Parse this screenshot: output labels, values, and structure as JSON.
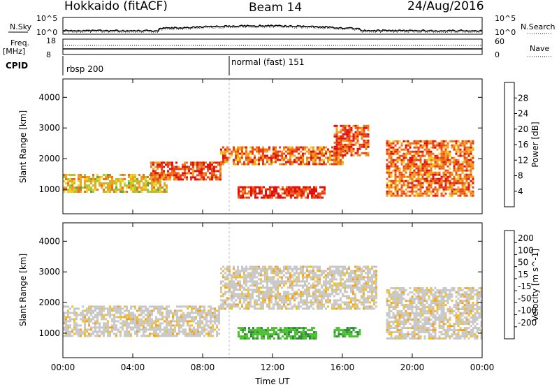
{
  "header": {
    "radar": "Hokkaido (fitACF)",
    "beam": "Beam 14",
    "date": "24/Aug/2016"
  },
  "top_panels": {
    "nsky_label": "N.Sky",
    "nsky_ticks": [
      "10^5",
      "10^0"
    ],
    "nsearch_label": "N.Search",
    "nsearch_ticks": [
      "10^5",
      "10^0"
    ],
    "freq_label": "Freq.",
    "freq_unit": "[MHz]",
    "freq_ticks": [
      "18",
      "8"
    ],
    "nave_label": "Nave",
    "nave_ticks": [
      "60",
      "0"
    ],
    "cpid_label": "CPID",
    "cpid_segments": [
      {
        "name": "rbsp 200",
        "start_hour": 0
      },
      {
        "name": "normal (fast) 151",
        "start_hour": 9.4
      }
    ]
  },
  "chart_data": [
    {
      "type": "heatmap",
      "parameter": "Power",
      "ylabel": "Slant Range [km]",
      "xlabel": "",
      "ylim": [
        200,
        4600
      ],
      "yticks": [
        "1000",
        "2000",
        "3000",
        "4000"
      ],
      "colorbar": {
        "label": "Power [dB]",
        "ticks": [
          "4",
          "8",
          "12",
          "16",
          "20",
          "24",
          "28"
        ],
        "range": [
          0,
          32
        ],
        "colors": [
          "#0018ff",
          "#1840b8",
          "#2e6fa0",
          "#3c8a64",
          "#4caa4c",
          "#9ccf36",
          "#f0d020",
          "#f5a020",
          "#f07018",
          "#e84015",
          "#e01010"
        ]
      },
      "echo_regions": [
        {
          "t0": 0.0,
          "t1": 6.0,
          "r0": 900,
          "r1": 1500,
          "level": 20
        },
        {
          "t0": 5.0,
          "t1": 9.0,
          "r0": 1300,
          "r1": 1900,
          "level": 28
        },
        {
          "t0": 9.0,
          "t1": 16.0,
          "r0": 1800,
          "r1": 2400,
          "level": 26
        },
        {
          "t0": 10.0,
          "t1": 15.0,
          "r0": 700,
          "r1": 1100,
          "level": 30
        },
        {
          "t0": 15.5,
          "t1": 17.5,
          "r0": 2100,
          "r1": 3100,
          "level": 28
        },
        {
          "t0": 18.5,
          "t1": 23.5,
          "r0": 800,
          "r1": 2600,
          "level": 26
        }
      ]
    },
    {
      "type": "heatmap",
      "parameter": "Velocity",
      "ylabel": "Slant Range [km]",
      "xlabel": "Time UT",
      "ylim": [
        200,
        4600
      ],
      "yticks": [
        "1000",
        "2000",
        "3000",
        "4000"
      ],
      "xticks": [
        "00:00",
        "04:00",
        "08:00",
        "12:00",
        "16:00",
        "20:00",
        "00:00"
      ],
      "colorbar": {
        "label": "Velocity [m s^-1]",
        "ticks": [
          "200",
          "100",
          "50",
          "15",
          "-15",
          "-50",
          "-100",
          "-200"
        ],
        "colors": [
          "#1030c0",
          "#2050a8",
          "#2f8a3c",
          "#4cbf30",
          "#c8c8c8",
          "#f0c020",
          "#f5a020",
          "#f07018",
          "#e81010"
        ]
      },
      "echo_regions": [
        {
          "t0": 0.0,
          "t1": 9.0,
          "r0": 900,
          "r1": 1900,
          "level": 0
        },
        {
          "t0": 10.0,
          "t1": 14.5,
          "r0": 800,
          "r1": 1200,
          "level": 40
        },
        {
          "t0": 15.5,
          "t1": 17.0,
          "r0": 900,
          "r1": 1200,
          "level": 40
        },
        {
          "t0": 9.0,
          "t1": 18.0,
          "r0": 1800,
          "r1": 3200,
          "level": 0
        },
        {
          "t0": 18.5,
          "t1": 24.0,
          "r0": 800,
          "r1": 2500,
          "level": 0
        }
      ]
    }
  ]
}
